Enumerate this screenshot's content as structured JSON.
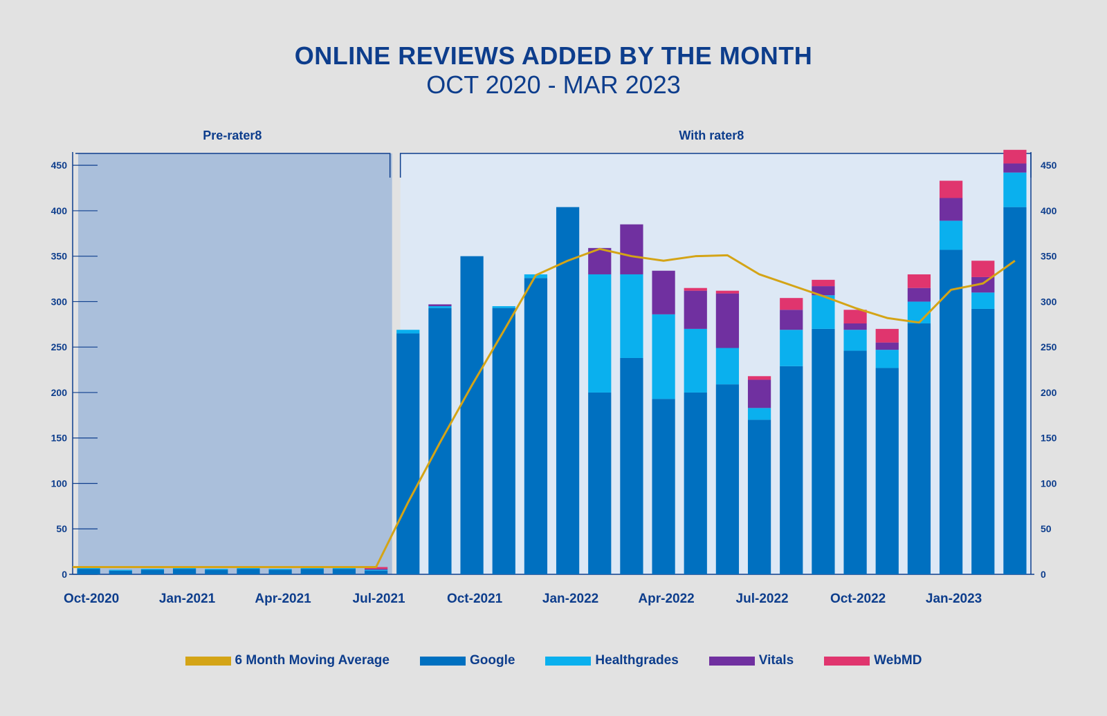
{
  "header": {
    "title": "ONLINE REVIEWS ADDED BY THE MONTH",
    "subtitle": "OCT 2020 - MAR 2023"
  },
  "regions": {
    "pre_label": "Pre-rater8",
    "post_label": "With rater8"
  },
  "colors": {
    "background": "#e2e2e2",
    "pre_region": "#aabfdb",
    "post_region": "#dde8f5",
    "axis": "#0d3d8c",
    "Google": "#0070c0",
    "Healthgrades": "#0ab0ee",
    "Vitals": "#7030a0",
    "WebMD": "#e0356e",
    "moving_average": "#d4a416"
  },
  "legend": [
    {
      "label": "6 Month Moving Average",
      "color_key": "moving_average"
    },
    {
      "label": "Google",
      "color_key": "Google"
    },
    {
      "label": "Healthgrades",
      "color_key": "Healthgrades"
    },
    {
      "label": "Vitals",
      "color_key": "Vitals"
    },
    {
      "label": "WebMD",
      "color_key": "WebMD"
    }
  ],
  "chart_data": {
    "type": "bar",
    "stacked": true,
    "x_tick_labels": [
      "Oct-2020",
      "Jan-2021",
      "Apr-2021",
      "Jul-2021",
      "Oct-2021",
      "Jan-2022",
      "Apr-2022",
      "Jul-2022",
      "Oct-2022",
      "Jan-2023"
    ],
    "categories": [
      "Oct-2020",
      "Nov-2020",
      "Dec-2020",
      "Jan-2021",
      "Feb-2021",
      "Mar-2021",
      "Apr-2021",
      "May-2021",
      "Jun-2021",
      "Jul-2021",
      "Aug-2021",
      "Sep-2021",
      "Oct-2021",
      "Nov-2021",
      "Dec-2021",
      "Jan-2022",
      "Feb-2022",
      "Mar-2022",
      "Apr-2022",
      "May-2022",
      "Jun-2022",
      "Jul-2022",
      "Aug-2022",
      "Sep-2022",
      "Oct-2022",
      "Nov-2022",
      "Dec-2022",
      "Jan-2023",
      "Feb-2023",
      "Mar-2023"
    ],
    "pre_rater8_months": 10,
    "series": [
      {
        "name": "Google",
        "values": [
          6,
          4,
          5,
          6,
          5,
          6,
          5,
          6,
          6,
          4,
          265,
          293,
          350,
          293,
          326,
          404,
          200,
          238,
          193,
          200,
          209,
          170,
          229,
          270,
          246,
          227,
          276,
          357,
          292,
          404
        ]
      },
      {
        "name": "Healthgrades",
        "values": [
          1,
          1,
          1,
          1,
          1,
          1,
          1,
          1,
          1,
          1,
          4,
          2,
          0,
          2,
          4,
          0,
          130,
          92,
          93,
          70,
          40,
          13,
          40,
          37,
          23,
          20,
          24,
          32,
          18,
          38
        ]
      },
      {
        "name": "Vitals",
        "values": [
          0,
          0,
          0,
          0,
          0,
          0,
          0,
          0,
          0,
          1,
          0,
          2,
          0,
          0,
          0,
          0,
          29,
          55,
          48,
          42,
          60,
          31,
          22,
          10,
          7,
          8,
          15,
          25,
          17,
          10
        ]
      },
      {
        "name": "WebMD",
        "values": [
          0,
          0,
          0,
          0,
          0,
          0,
          0,
          0,
          0,
          2,
          0,
          0,
          0,
          0,
          0,
          0,
          0,
          0,
          0,
          3,
          3,
          4,
          13,
          7,
          15,
          15,
          15,
          19,
          18,
          15
        ]
      }
    ],
    "moving_average": {
      "name": "6 Month Moving Average",
      "type": "line",
      "values": [
        8,
        8,
        8,
        8,
        8,
        8,
        8,
        8,
        8,
        8,
        79,
        145,
        208,
        268,
        329,
        345,
        358,
        350,
        345,
        350,
        351,
        330,
        318,
        306,
        293,
        282,
        277,
        313,
        320,
        345
      ]
    },
    "ylim": [
      0,
      460
    ],
    "yticks": [
      0,
      50,
      100,
      150,
      200,
      250,
      300,
      350,
      400,
      450
    ],
    "dual_y_axis": true,
    "legend_position": "bottom"
  }
}
